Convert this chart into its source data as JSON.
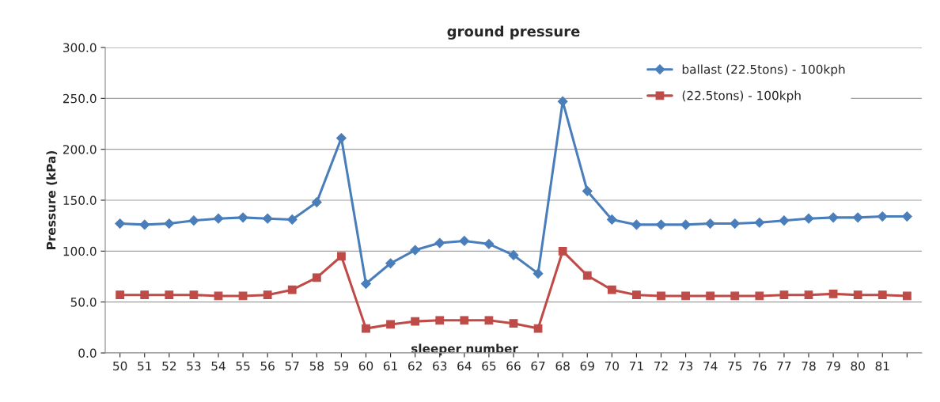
{
  "chart_data": {
    "type": "line",
    "title": "ground pressure",
    "xlabel": "sleeper number",
    "ylabel": "Pressure (kPa)",
    "categories": [
      "50",
      "51",
      "52",
      "53",
      "54",
      "55",
      "56",
      "57",
      "58",
      "59",
      "60",
      "61",
      "62",
      "63",
      "64",
      "65",
      "66",
      "67",
      "68",
      "69",
      "70",
      "71",
      "72",
      "73",
      "74",
      "75",
      "76",
      "77",
      "78",
      "79",
      "80",
      "81",
      null
    ],
    "series": [
      {
        "name": "ballast (22.5tons) - 100kph",
        "color": "#4a7ebb",
        "marker": "diamond",
        "values": [
          127,
          126,
          127,
          130,
          132,
          133,
          132,
          131,
          148,
          211,
          68,
          88,
          101,
          108,
          110,
          107,
          96,
          78,
          247,
          159,
          131,
          126,
          126,
          126,
          127,
          127,
          128,
          130,
          132,
          133,
          133,
          134,
          134
        ]
      },
      {
        "name": "(22.5tons) - 100kph",
        "color": "#be4b48",
        "marker": "square",
        "values": [
          57,
          57,
          57,
          57,
          56,
          56,
          57,
          62,
          74,
          95,
          24,
          28,
          31,
          32,
          32,
          32,
          29,
          24,
          100,
          76,
          62,
          57,
          56,
          56,
          56,
          56,
          56,
          57,
          57,
          58,
          57,
          57,
          56
        ]
      }
    ],
    "ylim": [
      0,
      300
    ],
    "yticks": [
      {
        "value": 0,
        "label": "0.0"
      },
      {
        "value": 50,
        "label": "50.0"
      },
      {
        "value": 100,
        "label": "100.0"
      },
      {
        "value": 150,
        "label": "150.0"
      },
      {
        "value": 200,
        "label": "200.0"
      },
      {
        "value": 250,
        "label": "250.0"
      },
      {
        "value": 300,
        "label": "300.0"
      }
    ],
    "grid": "y",
    "legend": "top right",
    "line_style": "solid"
  }
}
